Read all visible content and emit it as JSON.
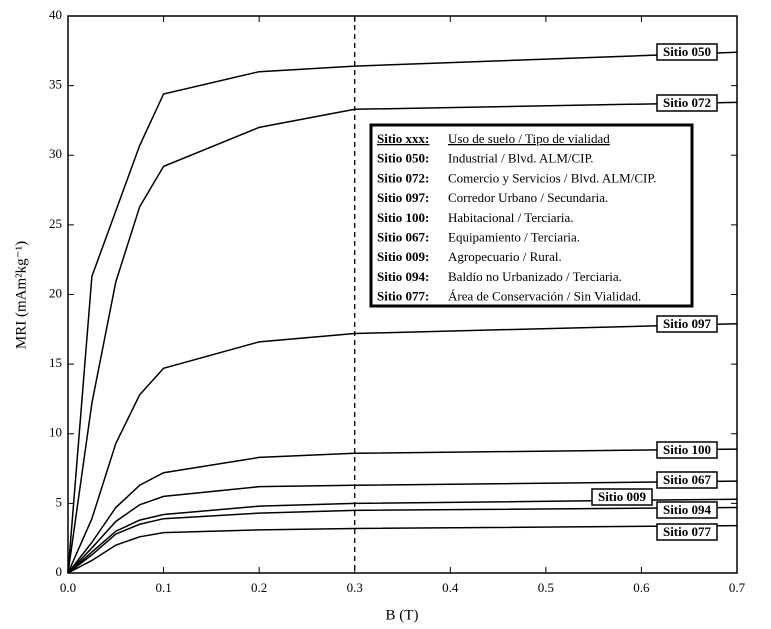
{
  "chart_data": {
    "type": "line",
    "xlabel": "B (T)",
    "ylabel": "MRI (mAm²kg⁻¹)",
    "x": [
      0,
      0.025,
      0.05,
      0.075,
      0.1,
      0.2,
      0.3,
      0.7
    ],
    "series": [
      {
        "name": "Sitio 050",
        "color": "#000000",
        "values": [
          0,
          21.3,
          26,
          30.7,
          34.4,
          36,
          36.4,
          37.4
        ]
      },
      {
        "name": "Sitio 072",
        "color": "#000000",
        "values": [
          0,
          12.2,
          20.9,
          26.3,
          29.2,
          32,
          33.3,
          33.8
        ]
      },
      {
        "name": "Sitio 097",
        "color": "#000000",
        "values": [
          0,
          3.9,
          9.3,
          12.8,
          14.7,
          16.6,
          17.2,
          17.9
        ]
      },
      {
        "name": "Sitio 100",
        "color": "#000000",
        "values": [
          0,
          2.2,
          4.7,
          6.3,
          7.2,
          8.3,
          8.6,
          8.9
        ]
      },
      {
        "name": "Sitio 067",
        "color": "#000000",
        "values": [
          0,
          1.8,
          3.7,
          4.9,
          5.5,
          6.2,
          6.3,
          6.6
        ]
      },
      {
        "name": "Sitio 009",
        "color": "#000000",
        "values": [
          0,
          1.5,
          3,
          3.8,
          4.2,
          4.8,
          5,
          5.3
        ]
      },
      {
        "name": "Sitio 094",
        "color": "#000000",
        "values": [
          0,
          1.3,
          2.8,
          3.5,
          3.9,
          4.3,
          4.5,
          4.7
        ]
      },
      {
        "name": "Sitio 077",
        "color": "#000000",
        "values": [
          0,
          0.9,
          2,
          2.6,
          2.9,
          3.1,
          3.2,
          3.4
        ]
      }
    ],
    "xlim": [
      0,
      0.7
    ],
    "xticks": [
      {
        "value": 0,
        "label": "0.0"
      },
      0.1,
      0.2,
      0.3,
      0.4,
      0.5,
      0.6,
      0.7
    ],
    "ylim": [
      0,
      40
    ],
    "yticks": [
      0,
      5,
      10,
      15,
      20,
      25,
      30,
      35,
      40
    ],
    "vline": 0.3,
    "info_box": {
      "header": [
        "Sitio xxx:",
        "Uso de suelo / Tipo de vialidad"
      ],
      "rows": [
        [
          "Sitio 050:",
          "Industrial / Blvd. ALM/CIP."
        ],
        [
          "Sitio 072:",
          "Comercio y Servicios / Blvd. ALM/CIP."
        ],
        [
          "Sitio 097:",
          "Corredor Urbano / Secundaria."
        ],
        [
          "Sitio 100:",
          "Habitacional / Terciaria."
        ],
        [
          "Sitio 067:",
          "Equipamiento / Terciaria."
        ],
        [
          "Sitio 009:",
          "Agropecuario / Rural."
        ],
        [
          "Sitio 094:",
          "Baldío no Urbanizado / Terciaria."
        ],
        [
          "Sitio 077:",
          "Área de Conservación / Sin Vialidad."
        ]
      ]
    }
  }
}
